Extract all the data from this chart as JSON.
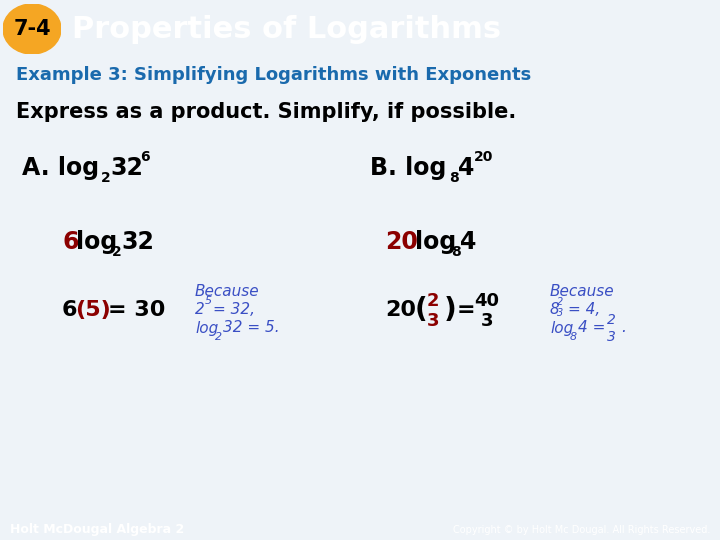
{
  "bg_color": "#eef3f8",
  "header_bg": "#2a6aad",
  "header_badge_color": "#f5a623",
  "header_badge_text": "7-4",
  "header_text": "Properties of Logarithms",
  "example_color": "#1a6aad",
  "example_text": "Example 3: Simplifying Logarithms with Exponents",
  "instruction": "Express as a product. Simplify, if possible.",
  "footer_bg": "#1a5c8a",
  "footer_left": "Holt McDougal Algebra 2",
  "footer_right": "Copyright © by Holt Mc Dougal. All Rights Reserved.",
  "red_color": "#8b0000",
  "blue_color": "#3a4fc4",
  "black": "#000000",
  "white": "#ffffff"
}
